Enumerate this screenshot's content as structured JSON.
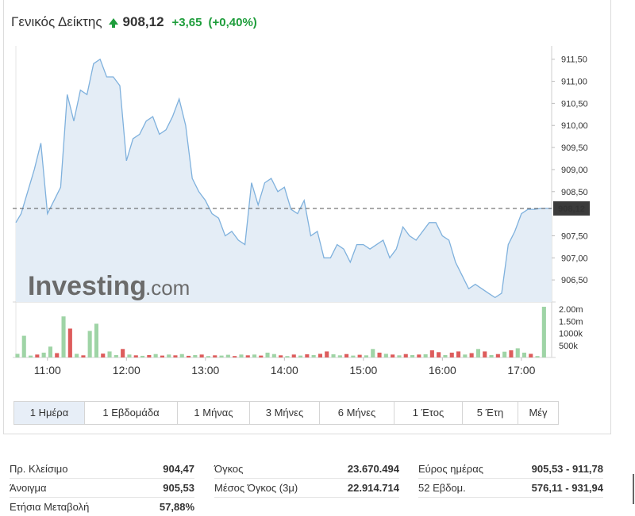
{
  "header": {
    "name": "Γενικός Δείκτης",
    "price": "908,12",
    "change": "+3,65",
    "change_pct": "(+0,40%)",
    "up_color": "#1e9d3b"
  },
  "watermark": {
    "brand": "Investing",
    "suffix": ".com"
  },
  "chart_data": {
    "type": "line",
    "title": "",
    "y_ticks": [
      "911,50",
      "911,00",
      "910,50",
      "910,00",
      "909,50",
      "909,00",
      "908,50",
      "907,50",
      "907,00",
      "906,50"
    ],
    "y_tick_values": [
      911.5,
      911.0,
      910.5,
      910.0,
      909.5,
      909.0,
      908.5,
      907.5,
      907.0,
      906.5
    ],
    "ylim": [
      906.0,
      911.8
    ],
    "x_ticks": [
      "11:00",
      "12:00",
      "13:00",
      "14:00",
      "15:00",
      "16:00",
      "17:00"
    ],
    "x_tick_minutes": [
      660,
      720,
      780,
      840,
      900,
      960,
      1020
    ],
    "xlim_minutes": [
      636,
      1043
    ],
    "last_value": 908.12,
    "last_value_label": "908,12",
    "line_color": "#7fb1dd",
    "area_color": "#e4edf6",
    "series": [
      {
        "minutes": [
          636,
          640,
          645,
          650,
          655,
          660,
          665,
          670,
          675,
          680,
          685,
          690,
          695,
          700,
          705,
          710,
          715,
          720,
          725,
          730,
          735,
          740,
          745,
          750,
          755,
          760,
          765,
          770,
          775,
          780,
          785,
          790,
          795,
          800,
          805,
          810,
          815,
          820,
          825,
          830,
          835,
          840,
          845,
          850,
          855,
          860,
          865,
          870,
          875,
          880,
          885,
          890,
          895,
          900,
          905,
          910,
          915,
          920,
          925,
          930,
          935,
          940,
          945,
          950,
          955,
          960,
          965,
          970,
          975,
          980,
          985,
          990,
          995,
          1000,
          1005,
          1010,
          1015,
          1020,
          1025,
          1030,
          1035,
          1040,
          1043
        ],
        "values": [
          907.8,
          908.0,
          908.5,
          909.0,
          909.6,
          908.0,
          908.3,
          908.6,
          910.7,
          910.1,
          910.8,
          910.7,
          911.4,
          911.5,
          911.1,
          911.1,
          910.9,
          909.2,
          909.7,
          909.8,
          910.1,
          910.2,
          909.8,
          909.9,
          910.2,
          910.6,
          910.0,
          908.8,
          908.5,
          908.3,
          908.0,
          907.9,
          907.5,
          907.6,
          907.4,
          907.3,
          908.7,
          908.2,
          908.7,
          908.8,
          908.5,
          908.6,
          908.1,
          908.0,
          908.3,
          907.5,
          907.6,
          907.0,
          907.0,
          907.3,
          907.2,
          906.9,
          907.3,
          907.3,
          907.2,
          907.3,
          907.4,
          907.0,
          907.2,
          907.7,
          907.5,
          907.4,
          907.6,
          907.8,
          907.8,
          907.5,
          907.4,
          906.9,
          906.6,
          906.3,
          906.4,
          906.3,
          906.2,
          906.1,
          906.2,
          907.3,
          907.6,
          908.0,
          908.1,
          908.1,
          908.12,
          908.12,
          908.12
        ]
      }
    ],
    "volume": {
      "ticks": [
        "2.00m",
        "1.50m",
        "1000k",
        "500k"
      ],
      "tick_values": [
        2000000,
        1500000,
        1000000,
        500000
      ],
      "max": 2200000,
      "up_color": "#9fd4a6",
      "down_color": "#dd5c5c",
      "bars": [
        {
          "m": 636,
          "v": 150000,
          "d": 0
        },
        {
          "m": 641,
          "v": 900000,
          "d": 0
        },
        {
          "m": 646,
          "v": 80000,
          "d": 0
        },
        {
          "m": 651,
          "v": 120000,
          "d": 1
        },
        {
          "m": 656,
          "v": 200000,
          "d": 0
        },
        {
          "m": 661,
          "v": 450000,
          "d": 0
        },
        {
          "m": 666,
          "v": 180000,
          "d": 1
        },
        {
          "m": 671,
          "v": 1700000,
          "d": 0
        },
        {
          "m": 676,
          "v": 1200000,
          "d": 1
        },
        {
          "m": 681,
          "v": 150000,
          "d": 0
        },
        {
          "m": 686,
          "v": 90000,
          "d": 1
        },
        {
          "m": 691,
          "v": 1100000,
          "d": 0
        },
        {
          "m": 696,
          "v": 1400000,
          "d": 0
        },
        {
          "m": 701,
          "v": 160000,
          "d": 1
        },
        {
          "m": 706,
          "v": 250000,
          "d": 0
        },
        {
          "m": 711,
          "v": 100000,
          "d": 0
        },
        {
          "m": 716,
          "v": 350000,
          "d": 1
        },
        {
          "m": 721,
          "v": 120000,
          "d": 0
        },
        {
          "m": 726,
          "v": 90000,
          "d": 1
        },
        {
          "m": 731,
          "v": 70000,
          "d": 0
        },
        {
          "m": 736,
          "v": 100000,
          "d": 1
        },
        {
          "m": 741,
          "v": 140000,
          "d": 0
        },
        {
          "m": 746,
          "v": 80000,
          "d": 1
        },
        {
          "m": 751,
          "v": 120000,
          "d": 0
        },
        {
          "m": 756,
          "v": 90000,
          "d": 1
        },
        {
          "m": 761,
          "v": 140000,
          "d": 0
        },
        {
          "m": 766,
          "v": 70000,
          "d": 1
        },
        {
          "m": 771,
          "v": 100000,
          "d": 0
        },
        {
          "m": 776,
          "v": 120000,
          "d": 1
        },
        {
          "m": 781,
          "v": 60000,
          "d": 0
        },
        {
          "m": 786,
          "v": 90000,
          "d": 1
        },
        {
          "m": 791,
          "v": 80000,
          "d": 0
        },
        {
          "m": 796,
          "v": 110000,
          "d": 0
        },
        {
          "m": 801,
          "v": 60000,
          "d": 1
        },
        {
          "m": 806,
          "v": 120000,
          "d": 0
        },
        {
          "m": 811,
          "v": 90000,
          "d": 1
        },
        {
          "m": 816,
          "v": 120000,
          "d": 0
        },
        {
          "m": 821,
          "v": 80000,
          "d": 1
        },
        {
          "m": 826,
          "v": 200000,
          "d": 0
        },
        {
          "m": 831,
          "v": 140000,
          "d": 0
        },
        {
          "m": 836,
          "v": 90000,
          "d": 1
        },
        {
          "m": 841,
          "v": 60000,
          "d": 0
        },
        {
          "m": 846,
          "v": 120000,
          "d": 1
        },
        {
          "m": 851,
          "v": 80000,
          "d": 0
        },
        {
          "m": 856,
          "v": 130000,
          "d": 1
        },
        {
          "m": 861,
          "v": 100000,
          "d": 0
        },
        {
          "m": 866,
          "v": 150000,
          "d": 1
        },
        {
          "m": 871,
          "v": 250000,
          "d": 1
        },
        {
          "m": 876,
          "v": 130000,
          "d": 0
        },
        {
          "m": 881,
          "v": 90000,
          "d": 0
        },
        {
          "m": 886,
          "v": 140000,
          "d": 1
        },
        {
          "m": 891,
          "v": 80000,
          "d": 0
        },
        {
          "m": 896,
          "v": 110000,
          "d": 1
        },
        {
          "m": 901,
          "v": 90000,
          "d": 0
        },
        {
          "m": 906,
          "v": 350000,
          "d": 0
        },
        {
          "m": 911,
          "v": 200000,
          "d": 1
        },
        {
          "m": 916,
          "v": 150000,
          "d": 0
        },
        {
          "m": 921,
          "v": 120000,
          "d": 1
        },
        {
          "m": 926,
          "v": 90000,
          "d": 0
        },
        {
          "m": 931,
          "v": 140000,
          "d": 1
        },
        {
          "m": 936,
          "v": 100000,
          "d": 0
        },
        {
          "m": 941,
          "v": 120000,
          "d": 1
        },
        {
          "m": 946,
          "v": 130000,
          "d": 0
        },
        {
          "m": 951,
          "v": 300000,
          "d": 1
        },
        {
          "m": 956,
          "v": 220000,
          "d": 1
        },
        {
          "m": 961,
          "v": 100000,
          "d": 0
        },
        {
          "m": 966,
          "v": 200000,
          "d": 1
        },
        {
          "m": 971,
          "v": 250000,
          "d": 1
        },
        {
          "m": 976,
          "v": 120000,
          "d": 0
        },
        {
          "m": 981,
          "v": 180000,
          "d": 1
        },
        {
          "m": 986,
          "v": 350000,
          "d": 0
        },
        {
          "m": 991,
          "v": 250000,
          "d": 1
        },
        {
          "m": 996,
          "v": 100000,
          "d": 0
        },
        {
          "m": 1001,
          "v": 140000,
          "d": 1
        },
        {
          "m": 1006,
          "v": 240000,
          "d": 0
        },
        {
          "m": 1011,
          "v": 300000,
          "d": 1
        },
        {
          "m": 1016,
          "v": 380000,
          "d": 0
        },
        {
          "m": 1021,
          "v": 200000,
          "d": 0
        },
        {
          "m": 1026,
          "v": 150000,
          "d": 1
        },
        {
          "m": 1031,
          "v": 60000,
          "d": 0
        },
        {
          "m": 1036,
          "v": 2100000,
          "d": 0
        }
      ]
    }
  },
  "ranges": [
    {
      "label": "1 Ημέρα",
      "active": true
    },
    {
      "label": "1 Εβδομάδα",
      "active": false
    },
    {
      "label": "1 Μήνας",
      "active": false
    },
    {
      "label": "3 Μήνες",
      "active": false
    },
    {
      "label": "6 Μήνες",
      "active": false
    },
    {
      "label": "1 Έτος",
      "active": false
    },
    {
      "label": "5 Έτη",
      "active": false
    },
    {
      "label": "Μέγ",
      "active": false
    }
  ],
  "stats": {
    "prev_close": {
      "label": "Πρ. Κλείσιμο",
      "value": "904,47"
    },
    "open": {
      "label": "Άνοιγμα",
      "value": "905,53"
    },
    "ytd_change": {
      "label": "Ετήσια Μεταβολή",
      "value": "57,88%"
    },
    "volume": {
      "label": "Όγκος",
      "value": "23.670.494"
    },
    "avg_volume": {
      "label": "Μέσος Όγκος (3μ)",
      "value": "22.914.714"
    },
    "day_range": {
      "label": "Εύρος ημέρας",
      "value": "905,53 - 911,78"
    },
    "week52": {
      "label": "52 Εβδομ.",
      "value": "576,11 - 931,94"
    }
  }
}
